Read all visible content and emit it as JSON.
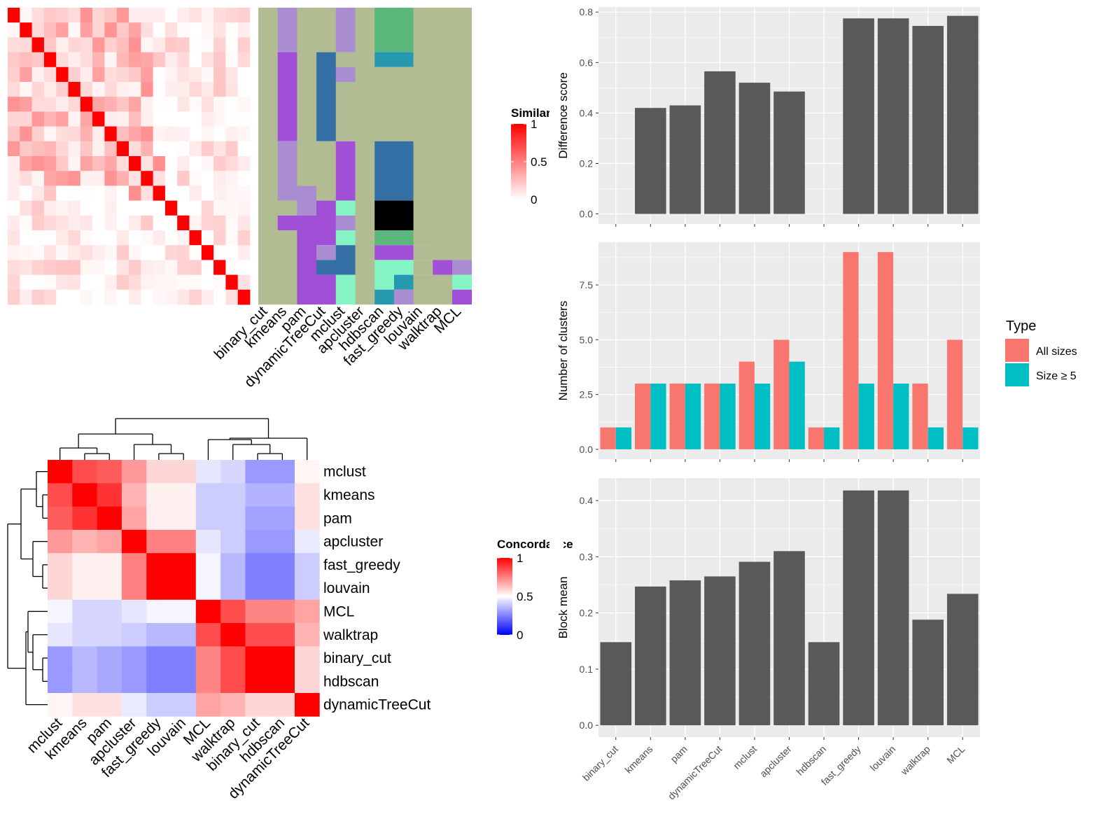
{
  "colors": {
    "panel_bg": "#ebebeb",
    "grid": "#ffffff",
    "bar_gray": "#595959",
    "all_sizes": "#f8766d",
    "size_ge5": "#00bfc4",
    "sim_high": "#ff0000",
    "sim_low": "#ffffff",
    "conc_low": "#0000ff",
    "conc_mid": "#ffffff",
    "conc_high": "#ff0000",
    "cluster_base": "#b2bc92"
  },
  "similarity_heatmap": {
    "n": 20,
    "legend": {
      "title": "Similarity",
      "ticks": [
        "1",
        "0.5",
        "0"
      ]
    }
  },
  "cluster_map": {
    "methods": [
      "binary_cut",
      "kmeans",
      "pam",
      "dynamicTreeCut",
      "mclust",
      "apcluster",
      "hdbscan",
      "fast_greedy",
      "louvain",
      "walktrap",
      "MCL"
    ],
    "palette": [
      "#b2bc92",
      "#aa8cd1",
      "#a24fd8",
      "#3470a5",
      "#5bb87c",
      "#2699b0",
      "#000000",
      "#85f5c6",
      "#463e61"
    ],
    "columns": [
      [
        [
          0,
          20,
          0
        ]
      ],
      [
        [
          0,
          3,
          1
        ],
        [
          3,
          9,
          2
        ],
        [
          9,
          13,
          1
        ],
        [
          13,
          14,
          0
        ],
        [
          14,
          15,
          2
        ],
        [
          15,
          20,
          0
        ]
      ],
      [
        [
          0,
          12,
          0
        ],
        [
          12,
          14,
          1
        ],
        [
          14,
          20,
          2
        ]
      ],
      [
        [
          0,
          3,
          0
        ],
        [
          3,
          9,
          3
        ],
        [
          9,
          13,
          0
        ],
        [
          13,
          16,
          2
        ],
        [
          16,
          17,
          1
        ],
        [
          17,
          18,
          3
        ],
        [
          18,
          20,
          2
        ]
      ],
      [
        [
          0,
          3,
          1
        ],
        [
          3,
          4,
          0
        ],
        [
          4,
          5,
          1
        ],
        [
          5,
          9,
          0
        ],
        [
          9,
          13,
          2
        ],
        [
          13,
          14,
          7
        ],
        [
          14,
          15,
          1
        ],
        [
          15,
          16,
          7
        ],
        [
          16,
          18,
          3
        ],
        [
          18,
          20,
          7
        ]
      ],
      [
        [
          0,
          20,
          0
        ]
      ],
      [
        [
          0,
          3,
          4
        ],
        [
          3,
          4,
          5
        ],
        [
          4,
          9,
          0
        ],
        [
          9,
          13,
          3
        ],
        [
          13,
          15,
          6
        ],
        [
          15,
          16,
          4
        ],
        [
          16,
          17,
          2
        ],
        [
          17,
          19,
          7
        ],
        [
          19,
          20,
          5
        ]
      ],
      [
        [
          0,
          3,
          4
        ],
        [
          3,
          4,
          5
        ],
        [
          4,
          9,
          0
        ],
        [
          9,
          13,
          3
        ],
        [
          13,
          15,
          6
        ],
        [
          15,
          16,
          4
        ],
        [
          16,
          17,
          2
        ],
        [
          17,
          18,
          7
        ],
        [
          18,
          19,
          5
        ],
        [
          19,
          21,
          1
        ],
        [
          21,
          22,
          8
        ]
      ],
      [
        [
          0,
          16,
          0
        ],
        [
          16,
          17,
          0
        ],
        [
          17,
          18,
          0
        ],
        [
          18,
          20,
          0
        ]
      ],
      [
        [
          0,
          17,
          0
        ],
        [
          17,
          18,
          2
        ],
        [
          18,
          20,
          0
        ]
      ],
      [
        [
          0,
          17,
          0
        ],
        [
          17,
          18,
          1
        ],
        [
          18,
          19,
          7
        ],
        [
          19,
          20,
          2
        ]
      ]
    ]
  },
  "concordance_heatmap": {
    "legend": {
      "title": "Concordance",
      "ticks": [
        "1",
        "0.5",
        "0"
      ]
    }
  },
  "chart_data": [
    {
      "type": "heatmap",
      "id": "concordance",
      "rows": [
        "mclust",
        "kmeans",
        "pam",
        "apcluster",
        "fast_greedy",
        "louvain",
        "MCL",
        "walktrap",
        "binary_cut",
        "hdbscan",
        "dynamicTreeCut"
      ],
      "cols": [
        "mclust",
        "kmeans",
        "pam",
        "apcluster",
        "fast_greedy",
        "louvain",
        "MCL",
        "walktrap",
        "binary_cut",
        "hdbscan",
        "dynamicTreeCut"
      ],
      "values": [
        [
          1.0,
          0.85,
          0.82,
          0.7,
          0.58,
          0.58,
          0.45,
          0.42,
          0.3,
          0.3,
          0.52
        ],
        [
          0.85,
          1.0,
          0.9,
          0.65,
          0.53,
          0.53,
          0.4,
          0.4,
          0.35,
          0.35,
          0.56
        ],
        [
          0.82,
          0.9,
          1.0,
          0.68,
          0.53,
          0.53,
          0.4,
          0.4,
          0.32,
          0.32,
          0.56
        ],
        [
          0.7,
          0.65,
          0.68,
          1.0,
          0.75,
          0.75,
          0.45,
          0.4,
          0.3,
          0.3,
          0.46
        ],
        [
          0.58,
          0.53,
          0.53,
          0.75,
          1.0,
          1.0,
          0.48,
          0.36,
          0.25,
          0.25,
          0.4
        ],
        [
          0.58,
          0.53,
          0.53,
          0.75,
          1.0,
          1.0,
          0.48,
          0.36,
          0.25,
          0.25,
          0.4
        ],
        [
          0.48,
          0.42,
          0.42,
          0.45,
          0.48,
          0.48,
          1.0,
          0.85,
          0.74,
          0.74,
          0.68
        ],
        [
          0.45,
          0.42,
          0.42,
          0.4,
          0.36,
          0.36,
          0.85,
          1.0,
          0.85,
          0.85,
          0.65
        ],
        [
          0.3,
          0.36,
          0.33,
          0.3,
          0.25,
          0.25,
          0.74,
          0.85,
          1.0,
          1.0,
          0.58
        ],
        [
          0.3,
          0.36,
          0.33,
          0.3,
          0.25,
          0.25,
          0.74,
          0.85,
          1.0,
          1.0,
          0.58
        ],
        [
          0.52,
          0.56,
          0.56,
          0.46,
          0.4,
          0.4,
          0.68,
          0.65,
          0.58,
          0.58,
          1.0
        ]
      ],
      "range": [
        0,
        1
      ]
    },
    {
      "type": "bar",
      "id": "difference_score",
      "categories": [
        "binary_cut",
        "kmeans",
        "pam",
        "dynamicTreeCut",
        "mclust",
        "apcluster",
        "hdbscan",
        "fast_greedy",
        "louvain",
        "walktrap",
        "MCL"
      ],
      "values": [
        null,
        0.42,
        0.43,
        0.565,
        0.52,
        0.485,
        null,
        0.775,
        0.775,
        0.745,
        0.785
      ],
      "ylabel": "Difference score",
      "ylim": [
        -0.04,
        0.82
      ],
      "yticks": [
        0.0,
        0.2,
        0.4,
        0.6,
        0.8
      ],
      "ytick_labels": [
        "0.0",
        "0.2",
        "0.4",
        "0.6",
        "0.8"
      ]
    },
    {
      "type": "bar",
      "id": "number_of_clusters",
      "categories": [
        "binary_cut",
        "kmeans",
        "pam",
        "dynamicTreeCut",
        "mclust",
        "apcluster",
        "hdbscan",
        "fast_greedy",
        "louvain",
        "walktrap",
        "MCL"
      ],
      "series": [
        {
          "name": "All sizes",
          "values": [
            1,
            3,
            3,
            3,
            4,
            5,
            1,
            9,
            9,
            3,
            5
          ]
        },
        {
          "name": "Size ≥ 5",
          "values": [
            1,
            3,
            3,
            3,
            3,
            4,
            1,
            3,
            3,
            1,
            1
          ]
        }
      ],
      "ylabel": "Number of clusters",
      "ylim": [
        -0.45,
        9.45
      ],
      "yticks": [
        0,
        2.5,
        5,
        7.5
      ],
      "ytick_labels": [
        "0.0",
        "2.5",
        "5.0",
        "7.5"
      ],
      "legend": {
        "title": "Type",
        "position": "right"
      }
    },
    {
      "type": "bar",
      "id": "block_mean",
      "categories": [
        "binary_cut",
        "kmeans",
        "pam",
        "dynamicTreeCut",
        "mclust",
        "apcluster",
        "hdbscan",
        "fast_greedy",
        "louvain",
        "walktrap",
        "MCL"
      ],
      "values": [
        0.148,
        0.247,
        0.258,
        0.265,
        0.291,
        0.31,
        0.148,
        0.418,
        0.418,
        0.188,
        0.234
      ],
      "ylabel": "Block mean",
      "ylim": [
        -0.021,
        0.44
      ],
      "yticks": [
        0.0,
        0.1,
        0.2,
        0.3,
        0.4
      ],
      "ytick_labels": [
        "0.0",
        "0.1",
        "0.2",
        "0.3",
        "0.4"
      ]
    }
  ]
}
